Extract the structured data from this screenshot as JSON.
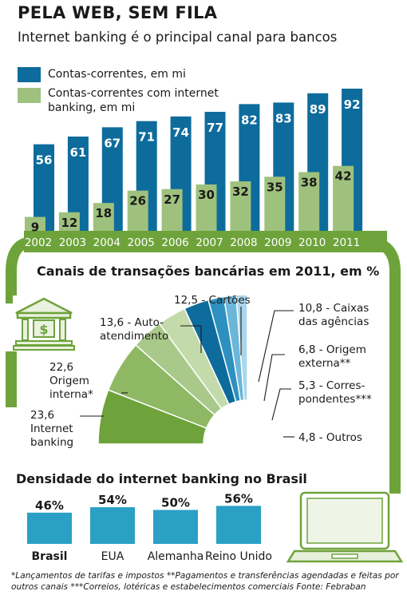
{
  "title": "PELA WEB, SEM FILA",
  "subtitle": "Internet banking é o principal canal para bancos",
  "legend": {
    "series_a": "Contas-correntes, em mi",
    "series_b": "Contas-correntes com internet banking, em mi"
  },
  "colors": {
    "blue": "#0d6c9c",
    "green": "#9fc17e",
    "dark_green": "#6ea33b",
    "teal": "#2aa0c4"
  },
  "chart_data": [
    {
      "type": "bar",
      "categories": [
        "2002",
        "2003",
        "2004",
        "2005",
        "2006",
        "2007",
        "2008",
        "2009",
        "2010",
        "2011"
      ],
      "series": [
        {
          "name": "Contas-correntes, em mi",
          "values": [
            56,
            61,
            67,
            71,
            74,
            77,
            82,
            83,
            89,
            92
          ]
        },
        {
          "name": "Contas-correntes com internet banking, em mi",
          "values": [
            9,
            12,
            18,
            26,
            27,
            30,
            32,
            35,
            38,
            42
          ]
        }
      ],
      "ylim": [
        0,
        92
      ]
    },
    {
      "type": "pie",
      "title": "Canais de transações bancárias em 2011, em %",
      "slices": [
        {
          "label": "Internet banking",
          "value": 23.6
        },
        {
          "label": "Origem interna*",
          "value": 22.6
        },
        {
          "label": "Auto-atendimento",
          "value": 13.6
        },
        {
          "label": "Cartões",
          "value": 12.5
        },
        {
          "label": "Caixas das agências",
          "value": 10.8
        },
        {
          "label": "Origem externa**",
          "value": 6.8
        },
        {
          "label": "Corres-pondentes***",
          "value": 5.3
        },
        {
          "label": "Outros",
          "value": 4.8
        }
      ],
      "slice_colors": [
        "#6ea33b",
        "#8eb863",
        "#a8c98a",
        "#c3dbab",
        "#0d6c9c",
        "#2e90bf",
        "#6cb6da",
        "#a9d6ec"
      ]
    },
    {
      "type": "bar",
      "title": "Densidade do internet banking no Brasil",
      "categories": [
        "Brasil",
        "EUA",
        "Alemanha",
        "Reino Unido"
      ],
      "values": [
        46,
        54,
        50,
        56
      ],
      "value_labels": [
        "46%",
        "54%",
        "50%",
        "56%"
      ]
    }
  ],
  "channel_labels": {
    "internet_banking": "23,6\nInternet\nbanking",
    "origem_interna": "22,6\nOrigem\ninterna*",
    "auto_atendimento": "13,6 - Auto-\natendimento",
    "cartoes": "12,5 - Cartões",
    "caixas": "10,8 - Caixas\ndas agências",
    "origem_externa": "6,8 - Origem\nexterna**",
    "correspondentes": "5,3 - Corres-\npondentes***",
    "outros": "4,8 - Outros"
  },
  "footnotes": "*Lançamentos de tarifas e impostos    **Pagamentos e transferências agendadas e feitas por outros canais    ***Correios, lotéricas e estabelecimentos comerciais    Fonte: Febraban"
}
